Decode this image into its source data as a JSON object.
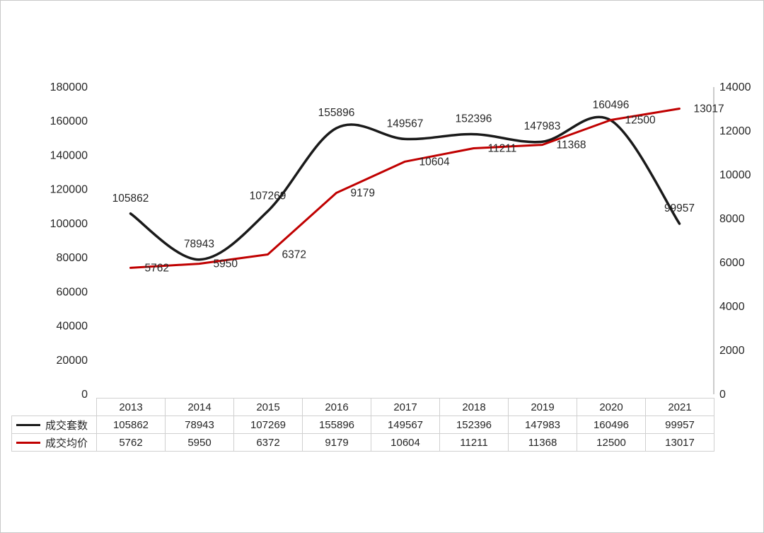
{
  "chart_data": {
    "type": "line",
    "title": "",
    "categories": [
      "2013",
      "2014",
      "2015",
      "2016",
      "2017",
      "2018",
      "2019",
      "2020",
      "2021"
    ],
    "series": [
      {
        "name": "成交套数",
        "axis": "left",
        "color": "#1a1a1a",
        "stroke_width": 3.5,
        "smooth": true,
        "values": [
          105862,
          78943,
          107269,
          155896,
          149567,
          152396,
          147983,
          160496,
          99957
        ]
      },
      {
        "name": "成交均价",
        "axis": "right",
        "color": "#c00000",
        "stroke_width": 3,
        "smooth": false,
        "values": [
          5762,
          5950,
          6372,
          9179,
          10604,
          11211,
          11368,
          12500,
          13017
        ]
      }
    ],
    "left_axis": {
      "min": 0,
      "max": 180000,
      "step": 20000
    },
    "right_axis": {
      "min": 0,
      "max": 14000,
      "step": 2000
    },
    "grid": false,
    "legend_position": "table-left",
    "data_label_color": "#1a1a1a"
  }
}
